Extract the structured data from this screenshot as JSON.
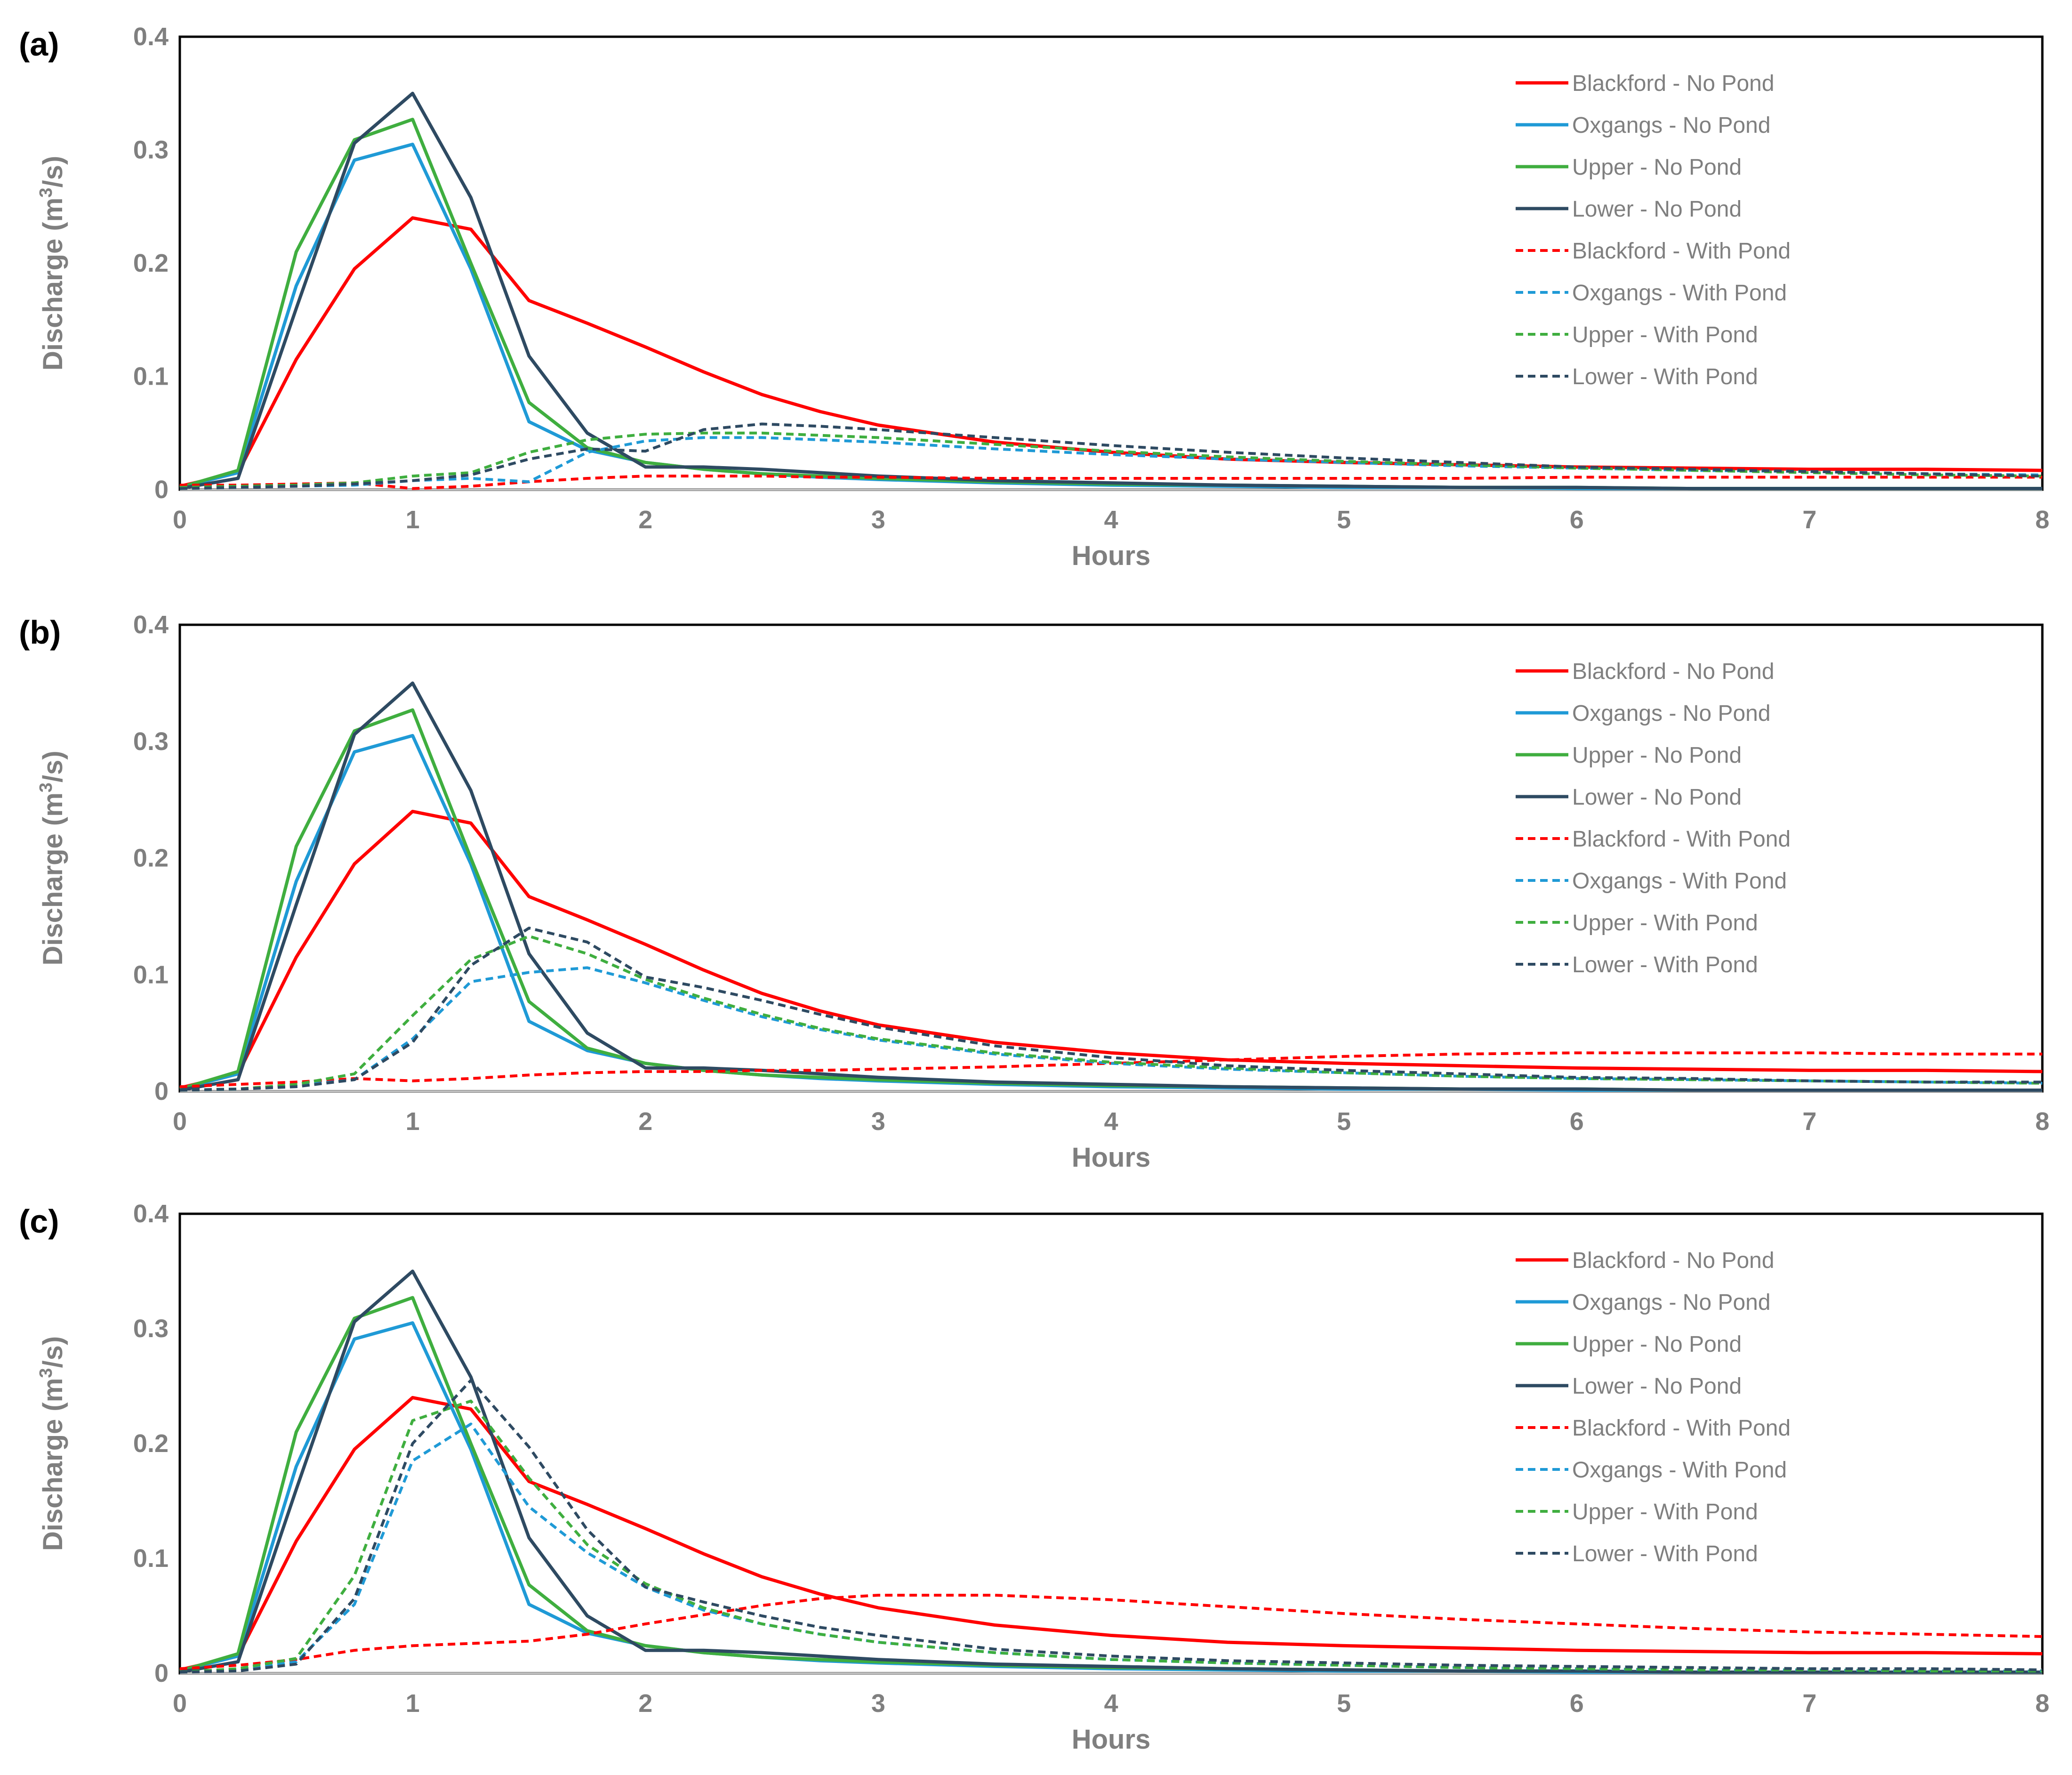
{
  "chart_data": [
    {
      "type": "line",
      "panel_label": "(a)",
      "xlabel": "Hours",
      "ylabel_prefix": "Discharge (m",
      "ylabel_sup": "3",
      "ylabel_suffix": "/s)",
      "xlim": [
        0,
        8
      ],
      "ylim": [
        0,
        0.4
      ],
      "xticks": [
        "0",
        "1",
        "2",
        "3",
        "4",
        "5",
        "6",
        "7",
        "8"
      ],
      "yticks": [
        "0",
        "0.1",
        "0.2",
        "0.3",
        "0.4"
      ],
      "grid": false,
      "legend_position": "top-right",
      "x": [
        0,
        0.25,
        0.5,
        0.75,
        1,
        1.25,
        1.5,
        1.75,
        2,
        2.25,
        2.5,
        2.75,
        3,
        3.5,
        4,
        4.5,
        5,
        5.5,
        6,
        6.5,
        7,
        7.5,
        8
      ],
      "series": [
        {
          "name": "Blackford - No Pond",
          "color": "#ff0000",
          "dash": "solid",
          "values": [
            0.003,
            0.015,
            0.115,
            0.195,
            0.24,
            0.23,
            0.167,
            0.147,
            0.126,
            0.104,
            0.084,
            0.069,
            0.057,
            0.042,
            0.033,
            0.027,
            0.024,
            0.022,
            0.02,
            0.019,
            0.018,
            0.018,
            0.017
          ]
        },
        {
          "name": "Oxgangs - No Pond",
          "color": "#1f9ad6",
          "dash": "solid",
          "values": [
            0.002,
            0.015,
            0.18,
            0.291,
            0.305,
            0.195,
            0.06,
            0.035,
            0.024,
            0.018,
            0.014,
            0.011,
            0.009,
            0.006,
            0.004,
            0.003,
            0.002,
            0.002,
            0.001,
            0.001,
            0.001,
            0.001,
            0.001
          ]
        },
        {
          "name": "Upper - No Pond",
          "color": "#3fae3f",
          "dash": "solid",
          "values": [
            0.002,
            0.017,
            0.21,
            0.309,
            0.327,
            0.2,
            0.077,
            0.037,
            0.024,
            0.018,
            0.014,
            0.012,
            0.01,
            0.007,
            0.005,
            0.004,
            0.003,
            0.002,
            0.002,
            0.001,
            0.001,
            0.001,
            0.001
          ]
        },
        {
          "name": "Lower - No Pond",
          "color": "#2e4a62",
          "dash": "solid",
          "values": [
            0.001,
            0.01,
            0.16,
            0.306,
            0.35,
            0.258,
            0.118,
            0.05,
            0.02,
            0.02,
            0.018,
            0.015,
            0.012,
            0.008,
            0.006,
            0.004,
            0.003,
            0.002,
            0.002,
            0.001,
            0.001,
            0.001,
            0.001
          ]
        },
        {
          "name": "Blackford - With Pond",
          "color": "#ff0000",
          "dash": "dashed",
          "values": [
            0.004,
            0.004,
            0.005,
            0.006,
            0.001,
            0.003,
            0.007,
            0.01,
            0.012,
            0.012,
            0.012,
            0.011,
            0.011,
            0.01,
            0.01,
            0.01,
            0.01,
            0.01,
            0.011,
            0.011,
            0.011,
            0.011,
            0.011
          ]
        },
        {
          "name": "Oxgangs - With Pond",
          "color": "#1f9ad6",
          "dash": "dashed",
          "values": [
            0.001,
            0.002,
            0.003,
            0.004,
            0.008,
            0.01,
            0.007,
            0.033,
            0.043,
            0.046,
            0.046,
            0.044,
            0.042,
            0.036,
            0.031,
            0.027,
            0.024,
            0.021,
            0.019,
            0.017,
            0.016,
            0.014,
            0.013
          ]
        },
        {
          "name": "Upper - With Pond",
          "color": "#3fae3f",
          "dash": "dashed",
          "values": [
            0.002,
            0.003,
            0.004,
            0.006,
            0.012,
            0.015,
            0.033,
            0.044,
            0.049,
            0.05,
            0.05,
            0.048,
            0.046,
            0.04,
            0.034,
            0.029,
            0.025,
            0.022,
            0.019,
            0.017,
            0.015,
            0.013,
            0.012
          ]
        },
        {
          "name": "Lower - With Pond",
          "color": "#2e4a62",
          "dash": "dashed",
          "values": [
            0.001,
            0.002,
            0.003,
            0.005,
            0.008,
            0.013,
            0.027,
            0.036,
            0.034,
            0.053,
            0.058,
            0.056,
            0.053,
            0.046,
            0.039,
            0.033,
            0.028,
            0.024,
            0.02,
            0.018,
            0.016,
            0.014,
            0.012
          ]
        }
      ]
    },
    {
      "type": "line",
      "panel_label": "(b)",
      "xlabel": "Hours",
      "ylabel_prefix": "Discharge (m",
      "ylabel_sup": "3",
      "ylabel_suffix": "/s)",
      "xlim": [
        0,
        8
      ],
      "ylim": [
        0,
        0.4
      ],
      "xticks": [
        "0",
        "1",
        "2",
        "3",
        "4",
        "5",
        "6",
        "7",
        "8"
      ],
      "yticks": [
        "0",
        "0.1",
        "0.2",
        "0.3",
        "0.4"
      ],
      "grid": false,
      "legend_position": "top-right",
      "x": [
        0,
        0.25,
        0.5,
        0.75,
        1,
        1.25,
        1.5,
        1.75,
        2,
        2.25,
        2.5,
        2.75,
        3,
        3.5,
        4,
        4.5,
        5,
        5.5,
        6,
        6.5,
        7,
        7.5,
        8
      ],
      "series": [
        {
          "name": "Blackford - No Pond",
          "color": "#ff0000",
          "dash": "solid",
          "values": [
            0.003,
            0.015,
            0.115,
            0.195,
            0.24,
            0.23,
            0.167,
            0.147,
            0.126,
            0.104,
            0.084,
            0.069,
            0.057,
            0.042,
            0.033,
            0.027,
            0.024,
            0.022,
            0.02,
            0.019,
            0.018,
            0.018,
            0.017
          ]
        },
        {
          "name": "Oxgangs - No Pond",
          "color": "#1f9ad6",
          "dash": "solid",
          "values": [
            0.002,
            0.015,
            0.18,
            0.291,
            0.305,
            0.195,
            0.06,
            0.035,
            0.024,
            0.018,
            0.014,
            0.011,
            0.009,
            0.006,
            0.004,
            0.003,
            0.002,
            0.002,
            0.001,
            0.001,
            0.001,
            0.001,
            0.001
          ]
        },
        {
          "name": "Upper - No Pond",
          "color": "#3fae3f",
          "dash": "solid",
          "values": [
            0.002,
            0.017,
            0.21,
            0.309,
            0.327,
            0.2,
            0.077,
            0.037,
            0.024,
            0.018,
            0.014,
            0.012,
            0.01,
            0.007,
            0.005,
            0.004,
            0.003,
            0.002,
            0.002,
            0.001,
            0.001,
            0.001,
            0.001
          ]
        },
        {
          "name": "Lower - No Pond",
          "color": "#2e4a62",
          "dash": "solid",
          "values": [
            0.001,
            0.01,
            0.16,
            0.306,
            0.35,
            0.258,
            0.118,
            0.05,
            0.02,
            0.02,
            0.018,
            0.015,
            0.012,
            0.008,
            0.006,
            0.004,
            0.003,
            0.002,
            0.002,
            0.001,
            0.001,
            0.001,
            0.001
          ]
        },
        {
          "name": "Blackford - With Pond",
          "color": "#ff0000",
          "dash": "dashed",
          "values": [
            0.004,
            0.006,
            0.008,
            0.011,
            0.009,
            0.011,
            0.014,
            0.016,
            0.017,
            0.017,
            0.018,
            0.018,
            0.019,
            0.021,
            0.024,
            0.027,
            0.03,
            0.032,
            0.033,
            0.033,
            0.033,
            0.032,
            0.032
          ]
        },
        {
          "name": "Oxgangs - With Pond",
          "color": "#1f9ad6",
          "dash": "dashed",
          "values": [
            0.001,
            0.002,
            0.005,
            0.01,
            0.045,
            0.094,
            0.102,
            0.106,
            0.093,
            0.078,
            0.064,
            0.053,
            0.044,
            0.032,
            0.024,
            0.019,
            0.016,
            0.013,
            0.011,
            0.01,
            0.009,
            0.008,
            0.007
          ]
        },
        {
          "name": "Upper - With Pond",
          "color": "#3fae3f",
          "dash": "dashed",
          "values": [
            0.001,
            0.002,
            0.006,
            0.015,
            0.065,
            0.113,
            0.133,
            0.118,
            0.096,
            0.08,
            0.066,
            0.054,
            0.045,
            0.033,
            0.025,
            0.02,
            0.016,
            0.013,
            0.011,
            0.01,
            0.009,
            0.008,
            0.007
          ]
        },
        {
          "name": "Lower - With Pond",
          "color": "#2e4a62",
          "dash": "dashed",
          "values": [
            0.001,
            0.002,
            0.004,
            0.01,
            0.042,
            0.108,
            0.14,
            0.128,
            0.098,
            0.089,
            0.078,
            0.066,
            0.055,
            0.039,
            0.029,
            0.022,
            0.018,
            0.015,
            0.012,
            0.011,
            0.009,
            0.008,
            0.008
          ]
        }
      ]
    },
    {
      "type": "line",
      "panel_label": "(c)",
      "xlabel": "Hours",
      "ylabel_prefix": "Discharge (m",
      "ylabel_sup": "3",
      "ylabel_suffix": "/s)",
      "xlim": [
        0,
        8
      ],
      "ylim": [
        0,
        0.4
      ],
      "xticks": [
        "0",
        "1",
        "2",
        "3",
        "4",
        "5",
        "6",
        "7",
        "8"
      ],
      "yticks": [
        "0",
        "0.1",
        "0.2",
        "0.3",
        "0.4"
      ],
      "grid": false,
      "legend_position": "top-right",
      "x": [
        0,
        0.25,
        0.5,
        0.75,
        1,
        1.25,
        1.5,
        1.75,
        2,
        2.25,
        2.5,
        2.75,
        3,
        3.5,
        4,
        4.5,
        5,
        5.5,
        6,
        6.5,
        7,
        7.5,
        8
      ],
      "series": [
        {
          "name": "Blackford - No Pond",
          "color": "#ff0000",
          "dash": "solid",
          "values": [
            0.003,
            0.015,
            0.115,
            0.195,
            0.24,
            0.23,
            0.167,
            0.147,
            0.126,
            0.104,
            0.084,
            0.069,
            0.057,
            0.042,
            0.033,
            0.027,
            0.024,
            0.022,
            0.02,
            0.019,
            0.018,
            0.018,
            0.017
          ]
        },
        {
          "name": "Oxgangs - No Pond",
          "color": "#1f9ad6",
          "dash": "solid",
          "values": [
            0.002,
            0.015,
            0.18,
            0.291,
            0.305,
            0.195,
            0.06,
            0.035,
            0.024,
            0.018,
            0.014,
            0.011,
            0.009,
            0.006,
            0.004,
            0.003,
            0.002,
            0.002,
            0.001,
            0.001,
            0.001,
            0.001,
            0.001
          ]
        },
        {
          "name": "Upper - No Pond",
          "color": "#3fae3f",
          "dash": "solid",
          "values": [
            0.002,
            0.017,
            0.21,
            0.309,
            0.327,
            0.2,
            0.077,
            0.037,
            0.024,
            0.018,
            0.014,
            0.012,
            0.01,
            0.007,
            0.005,
            0.004,
            0.003,
            0.002,
            0.002,
            0.001,
            0.001,
            0.001,
            0.001
          ]
        },
        {
          "name": "Lower - No Pond",
          "color": "#2e4a62",
          "dash": "solid",
          "values": [
            0.001,
            0.01,
            0.16,
            0.306,
            0.35,
            0.258,
            0.118,
            0.05,
            0.02,
            0.02,
            0.018,
            0.015,
            0.012,
            0.008,
            0.006,
            0.004,
            0.003,
            0.002,
            0.002,
            0.001,
            0.001,
            0.001,
            0.001
          ]
        },
        {
          "name": "Blackford - With Pond",
          "color": "#ff0000",
          "dash": "dashed",
          "values": [
            0.004,
            0.007,
            0.012,
            0.02,
            0.024,
            0.026,
            0.028,
            0.034,
            0.043,
            0.051,
            0.059,
            0.065,
            0.068,
            0.068,
            0.064,
            0.058,
            0.052,
            0.047,
            0.043,
            0.039,
            0.036,
            0.034,
            0.032
          ]
        },
        {
          "name": "Oxgangs - With Pond",
          "color": "#1f9ad6",
          "dash": "dashed",
          "values": [
            0.001,
            0.003,
            0.01,
            0.06,
            0.185,
            0.217,
            0.145,
            0.105,
            0.075,
            0.055,
            0.043,
            0.034,
            0.027,
            0.018,
            0.012,
            0.009,
            0.007,
            0.005,
            0.004,
            0.003,
            0.003,
            0.002,
            0.002
          ]
        },
        {
          "name": "Upper - With Pond",
          "color": "#3fae3f",
          "dash": "dashed",
          "values": [
            0.001,
            0.004,
            0.013,
            0.085,
            0.22,
            0.237,
            0.17,
            0.112,
            0.078,
            0.057,
            0.043,
            0.034,
            0.027,
            0.018,
            0.012,
            0.009,
            0.007,
            0.005,
            0.004,
            0.003,
            0.003,
            0.002,
            0.002
          ]
        },
        {
          "name": "Lower - With Pond",
          "color": "#2e4a62",
          "dash": "dashed",
          "values": [
            0.001,
            0.002,
            0.008,
            0.065,
            0.2,
            0.255,
            0.197,
            0.125,
            0.075,
            0.062,
            0.05,
            0.04,
            0.033,
            0.021,
            0.015,
            0.011,
            0.009,
            0.007,
            0.006,
            0.005,
            0.004,
            0.004,
            0.003
          ]
        }
      ]
    }
  ]
}
